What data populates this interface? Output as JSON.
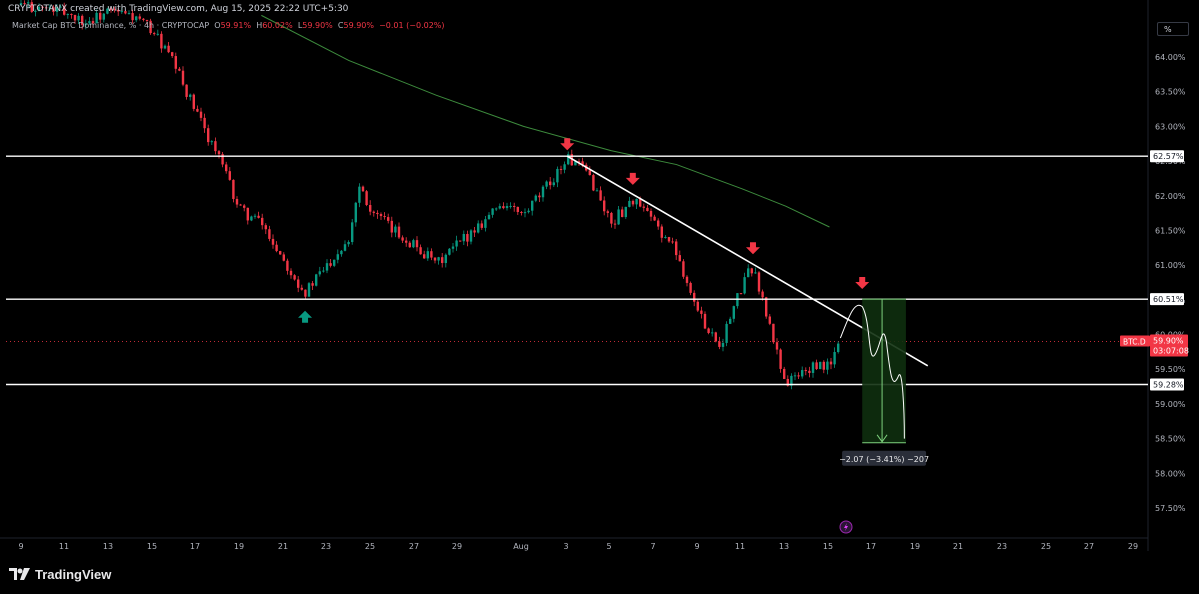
{
  "header": {
    "credit": "CRYPTOTANX created with TradingView.com, Aug 15, 2025 22:22 UTC+5:30"
  },
  "legend": {
    "symbol_text": "Market Cap BTC Dominance, %",
    "interval": "4h",
    "exchange": "CRYPTOCAP",
    "open_label": "O",
    "open_value": "59.91%",
    "high_label": "H",
    "high_value": "60.02%",
    "low_label": "L",
    "low_value": "59.90%",
    "close_label": "C",
    "close_value": "59.90%",
    "change": "−0.01 (−0.02%)"
  },
  "scale_mode": "%",
  "price_badge": {
    "ticker": "BTC.D",
    "price": "59.90%",
    "countdown": "03:07:08"
  },
  "measure_label": "−2.07 (−3.41%) −207",
  "footer": {
    "brand": "TradingView"
  },
  "colors": {
    "background": "#000000",
    "up": "#089981",
    "down": "#f23645",
    "ma": "#3d8b3d",
    "level": "#ffffff",
    "arrow_down": "#f23645",
    "arrow_up": "#089981",
    "measure_fill": "#0e2f0e",
    "measure_line": "#7ed27e"
  },
  "chart_data": {
    "type": "candlestick",
    "title": "Market Cap BTC Dominance, %",
    "timeframe": "4h",
    "y_axis": {
      "ticks": [
        "64.00%",
        "63.50%",
        "63.00%",
        "62.50%",
        "62.00%",
        "61.50%",
        "61.00%",
        "60.50%",
        "60.00%",
        "59.50%",
        "59.00%",
        "58.50%",
        "58.00%",
        "57.50%"
      ],
      "min": 57.2,
      "max": 64.6,
      "position": "right"
    },
    "x_axis": {
      "ticks": [
        "9",
        "11",
        "13",
        "15",
        "17",
        "19",
        "21",
        "23",
        "25",
        "27",
        "29",
        "Aug",
        "3",
        "5",
        "7",
        "9",
        "11",
        "13",
        "15",
        "17",
        "19",
        "21",
        "23",
        "25",
        "27",
        "29"
      ]
    },
    "horizontal_levels": [
      {
        "value": 62.57,
        "label": "62.57%"
      },
      {
        "value": 60.51,
        "label": "60.51%"
      },
      {
        "value": 59.28,
        "label": "59.28%"
      }
    ],
    "current_price": 59.9,
    "close_path": [
      {
        "date": "Jul 9",
        "value": 64.75
      },
      {
        "date": "Jul 10",
        "value": 64.7
      },
      {
        "date": "Jul 11",
        "value": 64.65
      },
      {
        "date": "Jul 12",
        "value": 64.5
      },
      {
        "date": "Jul 13",
        "value": 64.65
      },
      {
        "date": "Jul 14",
        "value": 64.6
      },
      {
        "date": "Jul 15",
        "value": 64.4
      },
      {
        "date": "Jul 16",
        "value": 63.9
      },
      {
        "date": "Jul 17",
        "value": 63.2
      },
      {
        "date": "Jul 18",
        "value": 62.6
      },
      {
        "date": "Jul 18.5",
        "value": 62.2
      },
      {
        "date": "Jul 19",
        "value": 61.8
      },
      {
        "date": "Jul 20",
        "value": 61.6
      },
      {
        "date": "Jul 21",
        "value": 61.1
      },
      {
        "date": "Jul 22",
        "value": 60.6
      },
      {
        "date": "Jul 23",
        "value": 61.0
      },
      {
        "date": "Jul 24",
        "value": 61.4
      },
      {
        "date": "Jul 24.5",
        "value": 62.2
      },
      {
        "date": "Jul 25",
        "value": 61.8
      },
      {
        "date": "Jul 26",
        "value": 61.5
      },
      {
        "date": "Jul 27",
        "value": 61.3
      },
      {
        "date": "Jul 28",
        "value": 61.0
      },
      {
        "date": "Jul 29",
        "value": 61.3
      },
      {
        "date": "Jul 30",
        "value": 61.6
      },
      {
        "date": "Jul 31",
        "value": 61.9
      },
      {
        "date": "Aug 1",
        "value": 61.7
      },
      {
        "date": "Aug 2",
        "value": 62.1
      },
      {
        "date": "Aug 3",
        "value": 62.55
      },
      {
        "date": "Aug 4",
        "value": 62.3
      },
      {
        "date": "Aug 5",
        "value": 61.6
      },
      {
        "date": "Aug 6",
        "value": 61.95
      },
      {
        "date": "Aug 7",
        "value": 61.6
      },
      {
        "date": "Aug 8",
        "value": 61.2
      },
      {
        "date": "Aug 9",
        "value": 60.3
      },
      {
        "date": "Aug 10",
        "value": 59.85
      },
      {
        "date": "Aug 11",
        "value": 60.7
      },
      {
        "date": "Aug 11.5",
        "value": 61.0
      },
      {
        "date": "Aug 12",
        "value": 60.4
      },
      {
        "date": "Aug 13",
        "value": 59.3
      },
      {
        "date": "Aug 14",
        "value": 59.5
      },
      {
        "date": "Aug 15",
        "value": 59.55
      },
      {
        "date": "Aug 15.5",
        "value": 59.9
      }
    ],
    "moving_average": [
      {
        "date": "Jul 20",
        "value": 64.6
      },
      {
        "date": "Jul 24",
        "value": 63.95
      },
      {
        "date": "Jul 28",
        "value": 63.45
      },
      {
        "date": "Aug 1",
        "value": 63.0
      },
      {
        "date": "Aug 5",
        "value": 62.65
      },
      {
        "date": "Aug 8",
        "value": 62.45
      },
      {
        "date": "Aug 11",
        "value": 62.1
      },
      {
        "date": "Aug 13",
        "value": 61.85
      },
      {
        "date": "Aug 15",
        "value": 61.55
      }
    ],
    "trendline": {
      "start": {
        "date": "Aug 3",
        "value": 62.57
      },
      "end": {
        "date": "Aug 19.5",
        "value": 59.55
      }
    },
    "markers": [
      {
        "type": "arrow-down",
        "date": "Aug 3",
        "value": 62.7
      },
      {
        "type": "arrow-down",
        "date": "Aug 6",
        "value": 62.2
      },
      {
        "type": "arrow-down",
        "date": "Aug 11.5",
        "value": 61.2
      },
      {
        "type": "arrow-down",
        "date": "Aug 16.5",
        "value": 60.7
      },
      {
        "type": "arrow-up",
        "date": "Jul 22",
        "value": 60.3
      }
    ],
    "measure": {
      "start_date": "Aug 16.5",
      "end_date": "Aug 18.5",
      "from": 60.51,
      "to": 58.44,
      "change": -2.07,
      "change_pct": -3.41
    }
  }
}
